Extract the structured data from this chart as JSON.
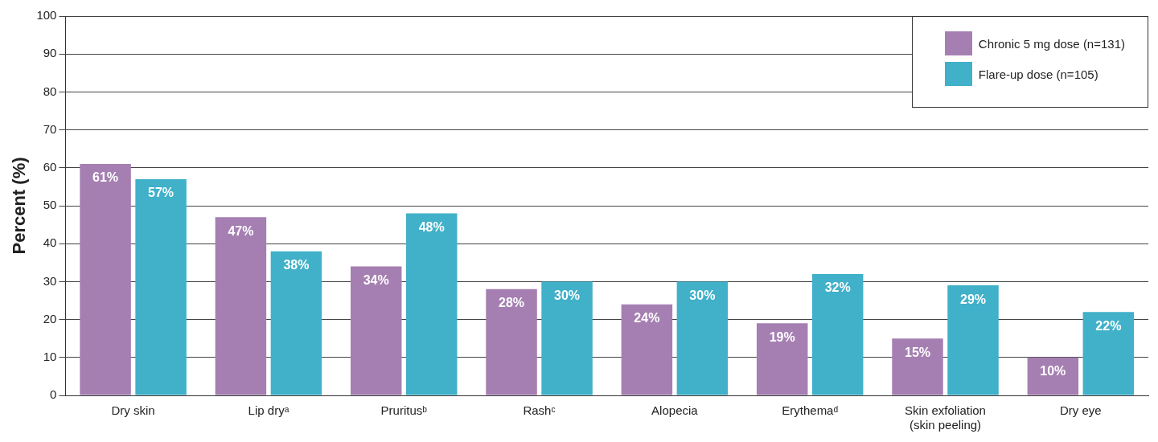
{
  "chart_data": {
    "type": "bar",
    "ylabel": "Percent (%)",
    "categories": [
      "Dry skin",
      "Lip dryᵃ",
      "Pruritusᵇ",
      "Rashᶜ",
      "Alopecia",
      "Erythemaᵈ",
      "Skin exfoliation (skin peeling)",
      "Dry eye"
    ],
    "series": [
      {
        "name": "Chronic 5 mg dose (n=131)",
        "color": "#a57fb2",
        "values": [
          61,
          47,
          34,
          28,
          24,
          19,
          15,
          10
        ],
        "value_labels": [
          "61%",
          "47%",
          "34%",
          "28%",
          "24%",
          "19%",
          "15%",
          "10%"
        ]
      },
      {
        "name": "Flare-up dose (n=105)",
        "color": "#41b0c9",
        "values": [
          57,
          38,
          48,
          30,
          30,
          32,
          29,
          22
        ],
        "value_labels": [
          "57%",
          "38%",
          "48%",
          "30%",
          "30%",
          "32%",
          "29%",
          "22%"
        ]
      }
    ],
    "ylim": [
      0,
      100
    ],
    "yticks": [
      0,
      10,
      20,
      30,
      40,
      50,
      60,
      70,
      80,
      90,
      100
    ],
    "grid": "y",
    "legend": "top right"
  }
}
